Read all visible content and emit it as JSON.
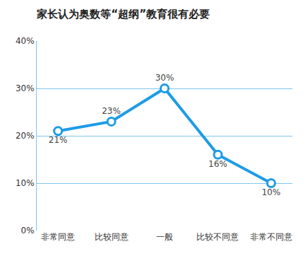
{
  "chart_data": {
    "type": "line",
    "title": "家长认为奥数等“超纲”教育很有必要",
    "categories": [
      "非常同意",
      "比较同意",
      "一般",
      "比较不同意",
      "非常不同意"
    ],
    "values": [
      21,
      23,
      30,
      16,
      10
    ],
    "value_labels": [
      "21%",
      "23%",
      "30%",
      "16%",
      "10%"
    ],
    "data_labels": true,
    "color": "#1e9be6",
    "marker": "circle",
    "ylim": [
      0,
      40
    ],
    "yticks": [
      {
        "value": 0,
        "label": "0%"
      },
      {
        "value": 10,
        "label": "10%"
      },
      {
        "value": 20,
        "label": "20%"
      },
      {
        "value": 30,
        "label": "30%"
      },
      {
        "value": 40,
        "label": "40%"
      }
    ],
    "grid": true
  }
}
